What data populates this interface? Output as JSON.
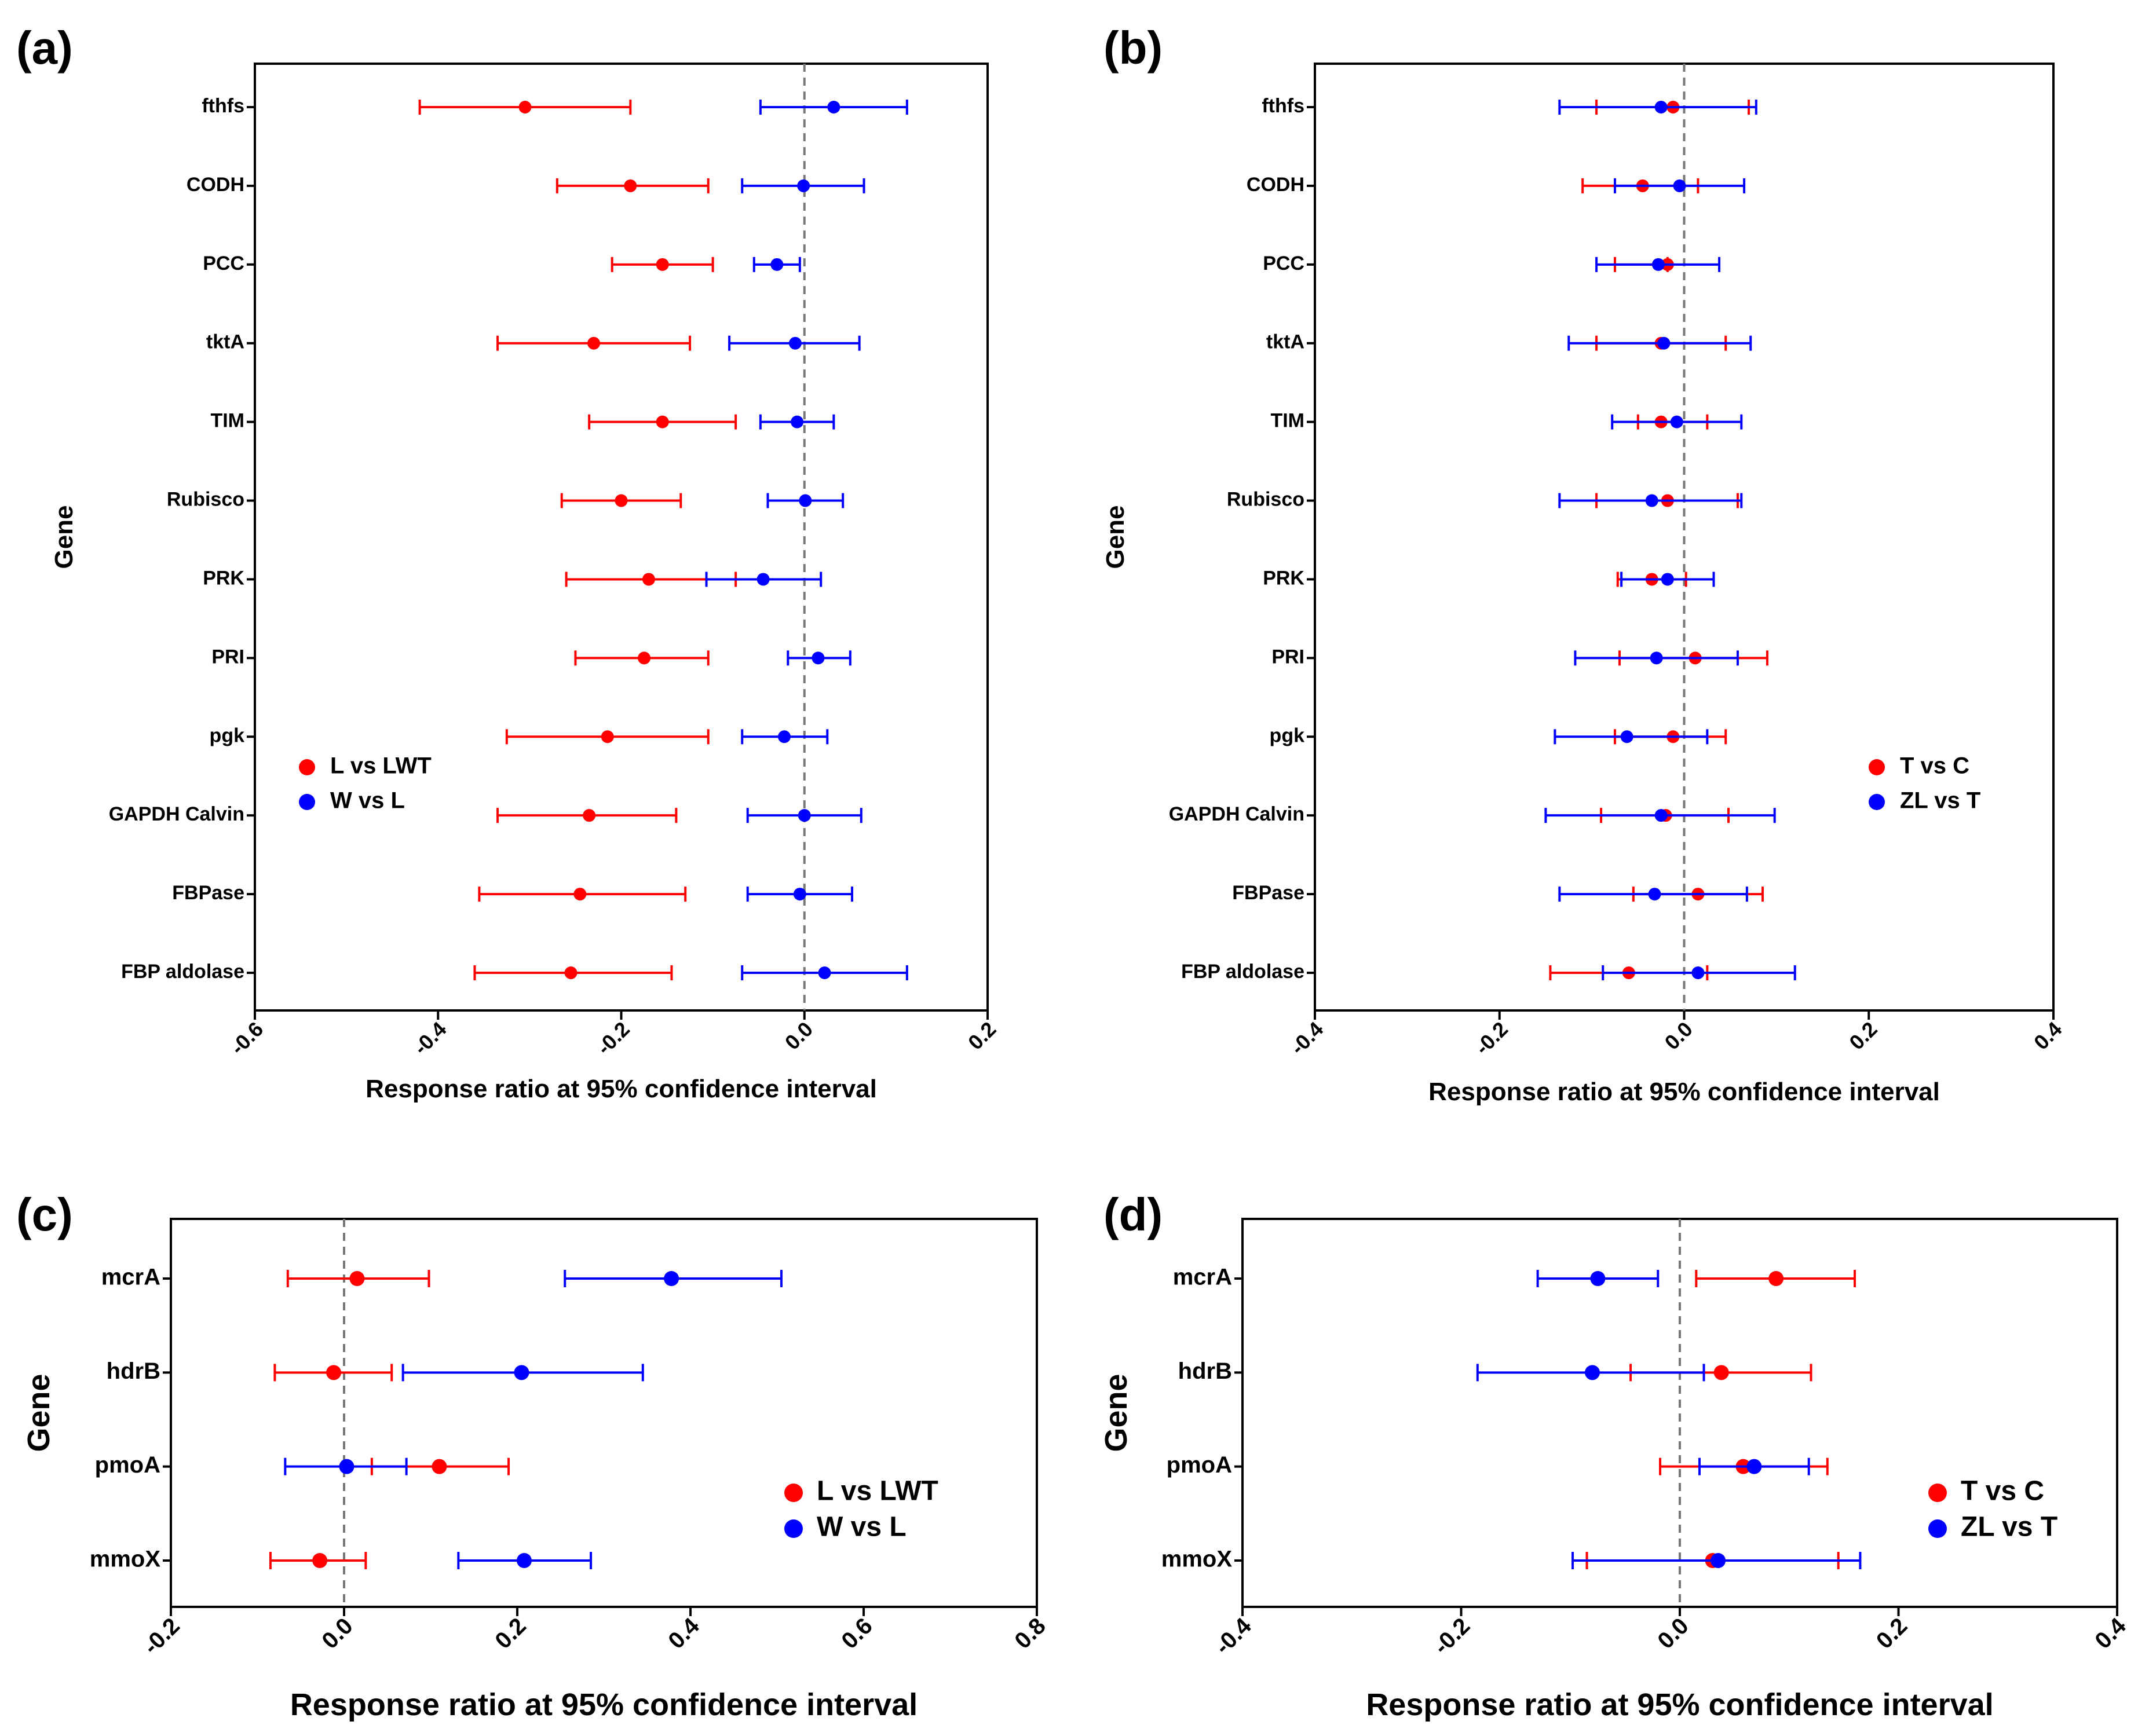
{
  "figure": {
    "colors": {
      "red": "#ff0000",
      "blue": "#0000ff",
      "axis": "#000000",
      "refline": "#777777"
    }
  },
  "chart_data": [
    {
      "panel": "(a)",
      "type": "scatter",
      "subtype": "forest-plot",
      "xlabel": "Response ratio at 95% confidence interval",
      "ylabel": "Gene",
      "xlim": [
        -0.6,
        0.2
      ],
      "xticks": [
        -0.6,
        -0.4,
        -0.2,
        0.0,
        0.2
      ],
      "xtick_labels": [
        "-0.6",
        "-0.4",
        "-0.2",
        "0.0",
        "0.2"
      ],
      "reference_line": 0.0,
      "legend_position": "bottom-left",
      "categories": [
        "fthfs",
        "CODH",
        "PCC",
        "tktA",
        "TIM",
        "Rubisco",
        "PRK",
        "PRI",
        "pgk",
        "GAPDH Calvin",
        "FBPase",
        "FBP aldolase"
      ],
      "series": [
        {
          "name": "L vs LWT",
          "color": "#ff0000",
          "values": [
            -0.305,
            -0.19,
            -0.155,
            -0.23,
            -0.155,
            -0.2,
            -0.17,
            -0.175,
            -0.215,
            -0.235,
            -0.245,
            -0.255
          ],
          "lower": [
            -0.42,
            -0.27,
            -0.21,
            -0.335,
            -0.235,
            -0.265,
            -0.26,
            -0.25,
            -0.325,
            -0.335,
            -0.355,
            -0.36
          ],
          "upper": [
            -0.19,
            -0.105,
            -0.1,
            -0.125,
            -0.075,
            -0.135,
            -0.075,
            -0.105,
            -0.105,
            -0.14,
            -0.13,
            -0.145
          ]
        },
        {
          "name": "W vs L",
          "color": "#0000ff",
          "values": [
            0.032,
            -0.001,
            -0.03,
            -0.01,
            -0.008,
            0.001,
            -0.045,
            0.015,
            -0.022,
            0.0,
            -0.005,
            0.022
          ],
          "lower": [
            -0.048,
            -0.068,
            -0.055,
            -0.082,
            -0.048,
            -0.04,
            -0.107,
            -0.018,
            -0.068,
            -0.062,
            -0.062,
            -0.068
          ],
          "upper": [
            0.112,
            0.065,
            -0.005,
            0.06,
            0.032,
            0.042,
            0.018,
            0.05,
            0.025,
            0.062,
            0.052,
            0.112
          ]
        }
      ]
    },
    {
      "panel": "(b)",
      "type": "scatter",
      "subtype": "forest-plot",
      "xlabel": "Response ratio at 95% confidence interval",
      "ylabel": "Gene",
      "xlim": [
        -0.4,
        0.4
      ],
      "xticks": [
        -0.4,
        -0.2,
        0.0,
        0.2,
        0.4
      ],
      "xtick_labels": [
        "-0.4",
        "-0.2",
        "0.0",
        "0.2",
        "0.4"
      ],
      "reference_line": 0.0,
      "legend_position": "bottom-right",
      "categories": [
        "fthfs",
        "CODH",
        "PCC",
        "tktA",
        "TIM",
        "Rubisco",
        "PRK",
        "PRI",
        "pgk",
        "GAPDH Calvin",
        "FBPase",
        "FBP aldolase"
      ],
      "series": [
        {
          "name": "T vs C",
          "color": "#ff0000",
          "values": [
            -0.012,
            -0.045,
            -0.018,
            -0.025,
            -0.025,
            -0.018,
            -0.035,
            0.012,
            -0.012,
            -0.02,
            0.015,
            -0.06
          ],
          "lower": [
            -0.095,
            -0.11,
            -0.075,
            -0.095,
            -0.05,
            -0.095,
            -0.072,
            -0.07,
            -0.075,
            -0.09,
            -0.055,
            -0.145
          ],
          "upper": [
            0.07,
            0.015,
            -0.018,
            0.045,
            0.025,
            0.058,
            0.002,
            0.09,
            0.045,
            0.048,
            0.085,
            0.025
          ]
        },
        {
          "name": "ZL vs T",
          "color": "#0000ff",
          "values": [
            -0.025,
            -0.005,
            -0.028,
            -0.022,
            -0.008,
            -0.035,
            -0.018,
            -0.03,
            -0.062,
            -0.025,
            -0.032,
            0.015
          ],
          "lower": [
            -0.135,
            -0.075,
            -0.095,
            -0.125,
            -0.078,
            -0.135,
            -0.068,
            -0.118,
            -0.14,
            -0.15,
            -0.135,
            -0.088
          ],
          "upper": [
            0.078,
            0.065,
            0.038,
            0.072,
            0.062,
            0.062,
            0.032,
            0.058,
            0.025,
            0.098,
            0.068,
            0.12
          ]
        }
      ]
    },
    {
      "panel": "(c)",
      "type": "scatter",
      "subtype": "forest-plot",
      "xlabel": "Response ratio at 95% confidence interval",
      "ylabel": "Gene",
      "xlim": [
        -0.2,
        0.8
      ],
      "xticks": [
        -0.2,
        0.0,
        0.2,
        0.4,
        0.6,
        0.8
      ],
      "xtick_labels": [
        "-0.2",
        "0.0",
        "0.2",
        "0.4",
        "0.6",
        "0.8"
      ],
      "reference_line": 0.0,
      "legend_position": "center-right",
      "categories": [
        "mcrA",
        "hdrB",
        "pmoA",
        "mmoX"
      ],
      "series": [
        {
          "name": "L vs LWT",
          "color": "#ff0000",
          "values": [
            0.015,
            -0.012,
            0.11,
            -0.028
          ],
          "lower": [
            -0.065,
            -0.08,
            0.032,
            -0.085
          ],
          "upper": [
            0.098,
            0.055,
            0.19,
            0.025
          ]
        },
        {
          "name": "W vs L",
          "color": "#0000ff",
          "values": [
            0.378,
            0.205,
            0.003,
            0.208
          ],
          "lower": [
            0.255,
            0.068,
            -0.068,
            0.132
          ],
          "upper": [
            0.505,
            0.345,
            0.072,
            0.285
          ]
        }
      ]
    },
    {
      "panel": "(d)",
      "type": "scatter",
      "subtype": "forest-plot",
      "xlabel": "Response ratio at 95% confidence interval",
      "ylabel": "Gene",
      "xlim": [
        -0.4,
        0.4
      ],
      "xticks": [
        -0.4,
        -0.2,
        0.0,
        0.2,
        0.4
      ],
      "xtick_labels": [
        "-0.4",
        "-0.2",
        "0.0",
        "0.2",
        "0.4"
      ],
      "reference_line": 0.0,
      "legend_position": "center-right",
      "categories": [
        "mcrA",
        "hdrB",
        "pmoA",
        "mmoX"
      ],
      "series": [
        {
          "name": "T vs C",
          "color": "#ff0000",
          "values": [
            0.088,
            0.038,
            0.058,
            0.03
          ],
          "lower": [
            0.015,
            -0.045,
            -0.018,
            -0.085
          ],
          "upper": [
            0.16,
            0.12,
            0.135,
            0.145
          ]
        },
        {
          "name": "ZL vs T",
          "color": "#0000ff",
          "values": [
            -0.075,
            -0.08,
            0.068,
            0.035
          ],
          "lower": [
            -0.13,
            -0.185,
            0.018,
            -0.098
          ],
          "upper": [
            -0.02,
            0.022,
            0.118,
            0.165
          ]
        }
      ]
    }
  ]
}
